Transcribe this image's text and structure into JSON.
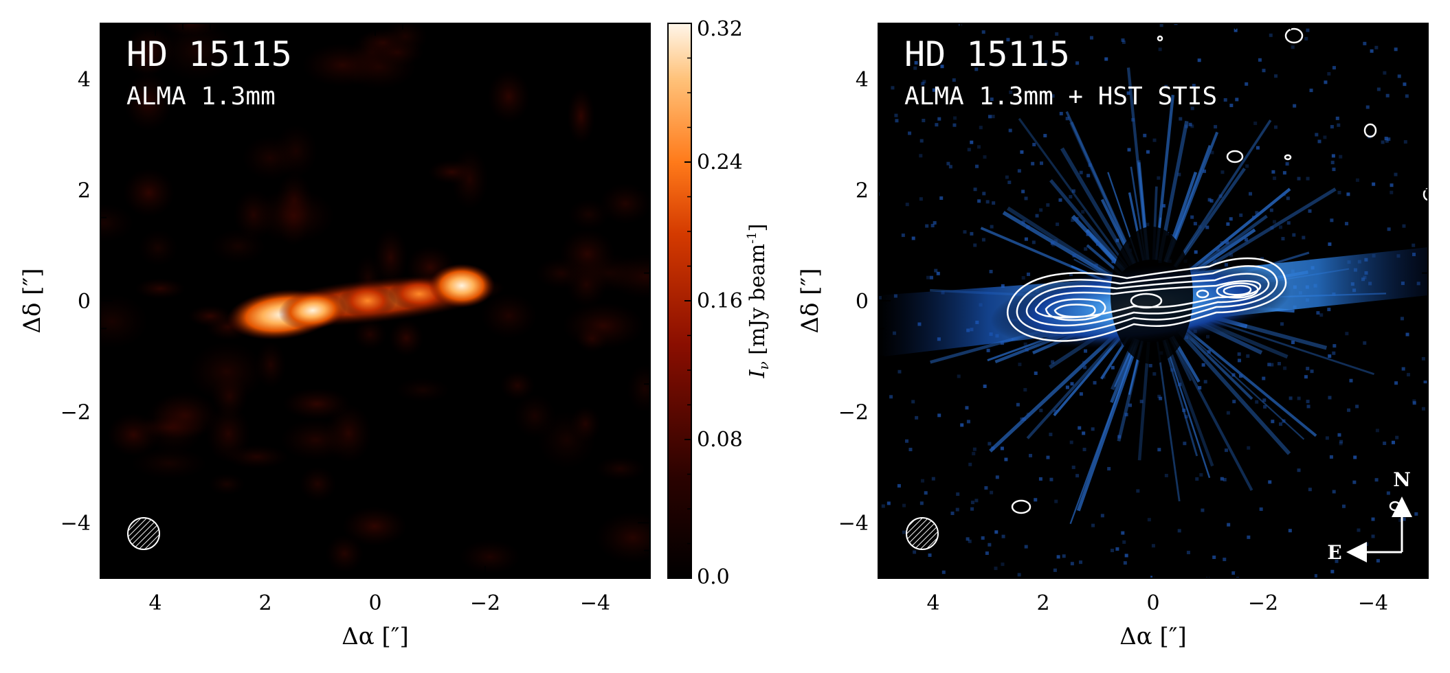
{
  "panels": [
    {
      "title": "HD 15115",
      "subtitle": "ALMA 1.3mm",
      "xlabel": "Δα [″]",
      "ylabel": "Δδ [″]",
      "x_range": [
        5,
        -5
      ],
      "y_range": [
        -5,
        5
      ],
      "x_ticks": [
        "4",
        "2",
        "0",
        "−2",
        "−4"
      ],
      "y_ticks": [
        "4",
        "2",
        "0",
        "−2",
        "−4"
      ],
      "colormap": "black-red-orange-white"
    },
    {
      "title": "HD 15115",
      "subtitle": "ALMA 1.3mm + HST STIS",
      "xlabel": "Δα [″]",
      "ylabel": "Δδ [″]",
      "x_range": [
        5,
        -5
      ],
      "y_range": [
        -5,
        5
      ],
      "x_ticks": [
        "4",
        "2",
        "0",
        "−2",
        "−4"
      ],
      "y_ticks": [
        "4",
        "2",
        "0",
        "−2",
        "−4"
      ],
      "colormap": "black-blue-white",
      "compass": {
        "north": "N",
        "east": "E"
      }
    }
  ],
  "colorbar": {
    "label": "I",
    "label_sub": "ν",
    "label_units": "[mJy beam",
    "label_exp": "-1",
    "label_close": "]",
    "tick_labels": [
      "0.32",
      "0.24",
      "0.16",
      "0.08",
      "0.0"
    ],
    "range": [
      0.0,
      0.32
    ]
  },
  "colors": {
    "background": "#ffffff",
    "map_bg": "#000000",
    "hot_core": "#fff3dc",
    "hot_mid": "#ff7a1a",
    "hot_low": "#8a0e00",
    "blue_core": "#c8ecff",
    "blue_mid": "#3d8fe0",
    "blue_low": "#0a2a6e",
    "contour": "#ffffff"
  }
}
